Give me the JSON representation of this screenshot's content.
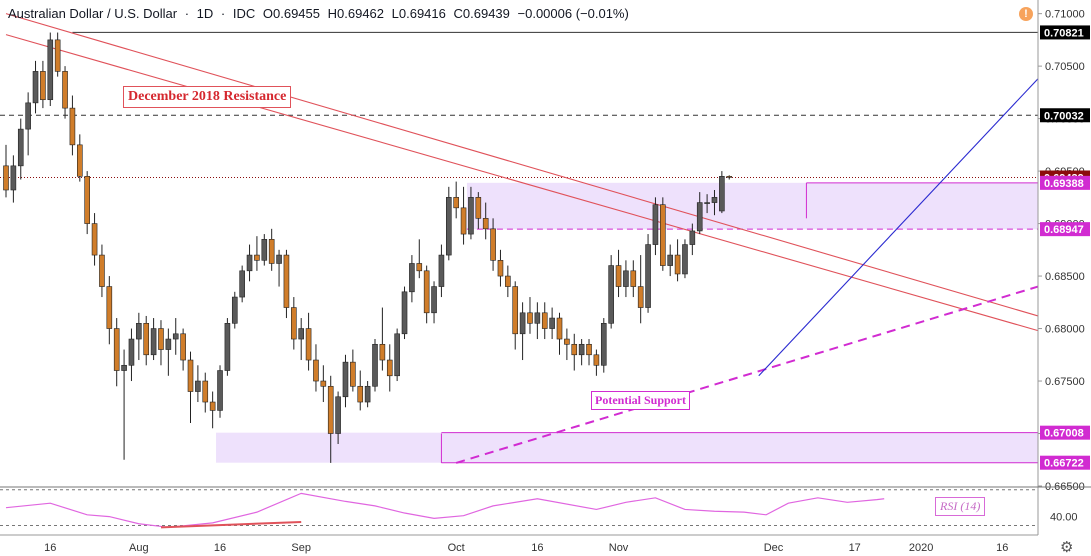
{
  "header": {
    "symbol": "Australian Dollar / U.S. Dollar",
    "timeframe": "1D",
    "source": "IDC",
    "open": "O0.69455",
    "high": "H0.69462",
    "low": "L0.69416",
    "close": "C0.69439",
    "change": "−0.00006 (−0.01%)"
  },
  "annotations": {
    "resistance": "December 2018 Resistance",
    "support": "Potential Support",
    "rsi": "RSI (14)"
  },
  "colors": {
    "up_candle": "#5a5a5a",
    "down_candle": "#d07d2a",
    "resistance": "#e0525a",
    "support": "#d12bd1",
    "trend": "#2a2ad0",
    "zone": "#ebdcfb",
    "current_price": "#8b0c0c"
  },
  "chart_data": [
    {
      "type": "candlestick",
      "title": "Australian Dollar / U.S. Dollar · 1D · IDC",
      "ylim": [
        0.665,
        0.7113
      ],
      "y_ticks": [
        "0.71000",
        "0.70500",
        "0.70000",
        "0.69500",
        "0.69000",
        "0.68500",
        "0.68000",
        "0.67500",
        "0.67000",
        "0.66500"
      ],
      "x_ticks": [
        "16",
        "Aug",
        "16",
        "Sep",
        "Oct",
        "16",
        "Nov",
        "Dec",
        "17",
        "2020",
        "16"
      ],
      "price_labels": [
        {
          "value": 0.70821,
          "text": "0.70821",
          "style": "black"
        },
        {
          "value": 0.70032,
          "text": "0.70032",
          "style": "black"
        },
        {
          "value": 0.69439,
          "text": "0.69439",
          "style": "current"
        },
        {
          "value": 0.69388,
          "text": "0.69388",
          "style": "support"
        },
        {
          "value": 0.68947,
          "text": "0.68947",
          "style": "support"
        },
        {
          "value": 0.67008,
          "text": "0.67008",
          "style": "support"
        },
        {
          "value": 0.66722,
          "text": "0.66722",
          "style": "support"
        }
      ],
      "zones": [
        {
          "from": 0.68947,
          "to": 0.69388,
          "start": 63
        },
        {
          "from": 0.66722,
          "to": 0.67008,
          "start": 29
        }
      ],
      "candles": [
        [
          0.6955,
          0.6975,
          0.6925,
          0.6932
        ],
        [
          0.6932,
          0.6965,
          0.692,
          0.6955
        ],
        [
          0.6955,
          0.7,
          0.6942,
          0.699
        ],
        [
          0.699,
          0.7025,
          0.6965,
          0.7015
        ],
        [
          0.7015,
          0.7055,
          0.7005,
          0.7045
        ],
        [
          0.7045,
          0.7055,
          0.701,
          0.7018
        ],
        [
          0.7018,
          0.7082,
          0.7012,
          0.7075
        ],
        [
          0.7075,
          0.7082,
          0.704,
          0.7045
        ],
        [
          0.7045,
          0.705,
          0.7,
          0.701
        ],
        [
          0.701,
          0.7022,
          0.6965,
          0.6975
        ],
        [
          0.6975,
          0.6985,
          0.694,
          0.6945
        ],
        [
          0.6945,
          0.695,
          0.689,
          0.69
        ],
        [
          0.69,
          0.691,
          0.686,
          0.687
        ],
        [
          0.687,
          0.688,
          0.683,
          0.684
        ],
        [
          0.684,
          0.685,
          0.6785,
          0.68
        ],
        [
          0.68,
          0.681,
          0.6745,
          0.676
        ],
        [
          0.676,
          0.678,
          0.6675,
          0.6765
        ],
        [
          0.6765,
          0.68,
          0.675,
          0.679
        ],
        [
          0.679,
          0.6815,
          0.677,
          0.6805
        ],
        [
          0.6805,
          0.6812,
          0.6765,
          0.6775
        ],
        [
          0.6775,
          0.681,
          0.677,
          0.68
        ],
        [
          0.68,
          0.6808,
          0.6765,
          0.678
        ],
        [
          0.678,
          0.68,
          0.6755,
          0.679
        ],
        [
          0.679,
          0.681,
          0.6775,
          0.6795
        ],
        [
          0.6795,
          0.68,
          0.676,
          0.677
        ],
        [
          0.677,
          0.6778,
          0.671,
          0.674
        ],
        [
          0.674,
          0.6765,
          0.673,
          0.675
        ],
        [
          0.675,
          0.6758,
          0.672,
          0.673
        ],
        [
          0.673,
          0.674,
          0.6705,
          0.6722
        ],
        [
          0.6722,
          0.6765,
          0.6715,
          0.676
        ],
        [
          0.676,
          0.681,
          0.6755,
          0.6805
        ],
        [
          0.6805,
          0.6835,
          0.68,
          0.683
        ],
        [
          0.683,
          0.686,
          0.6825,
          0.6855
        ],
        [
          0.6855,
          0.688,
          0.6845,
          0.687
        ],
        [
          0.687,
          0.6888,
          0.6855,
          0.6865
        ],
        [
          0.6865,
          0.689,
          0.686,
          0.6885
        ],
        [
          0.6885,
          0.6895,
          0.6855,
          0.6862
        ],
        [
          0.6862,
          0.6875,
          0.684,
          0.687
        ],
        [
          0.687,
          0.6875,
          0.681,
          0.682
        ],
        [
          0.682,
          0.683,
          0.678,
          0.679
        ],
        [
          0.679,
          0.681,
          0.677,
          0.68
        ],
        [
          0.68,
          0.6815,
          0.676,
          0.677
        ],
        [
          0.677,
          0.6785,
          0.674,
          0.675
        ],
        [
          0.675,
          0.6765,
          0.673,
          0.6745
        ],
        [
          0.6745,
          0.6755,
          0.6672,
          0.67
        ],
        [
          0.67,
          0.674,
          0.669,
          0.6735
        ],
        [
          0.6735,
          0.6775,
          0.6725,
          0.6768
        ],
        [
          0.6768,
          0.678,
          0.674,
          0.6745
        ],
        [
          0.6745,
          0.676,
          0.6722,
          0.673
        ],
        [
          0.673,
          0.675,
          0.6725,
          0.6745
        ],
        [
          0.6745,
          0.679,
          0.674,
          0.6785
        ],
        [
          0.6785,
          0.682,
          0.676,
          0.677
        ],
        [
          0.677,
          0.6785,
          0.674,
          0.6755
        ],
        [
          0.6755,
          0.68,
          0.675,
          0.6795
        ],
        [
          0.6795,
          0.684,
          0.679,
          0.6835
        ],
        [
          0.6835,
          0.687,
          0.6825,
          0.6862
        ],
        [
          0.6862,
          0.6885,
          0.6848,
          0.6855
        ],
        [
          0.6855,
          0.686,
          0.6805,
          0.6815
        ],
        [
          0.6815,
          0.6845,
          0.6805,
          0.684
        ],
        [
          0.684,
          0.688,
          0.683,
          0.687
        ],
        [
          0.687,
          0.6935,
          0.6865,
          0.6925
        ],
        [
          0.6925,
          0.694,
          0.6905,
          0.6915
        ],
        [
          0.6915,
          0.6935,
          0.688,
          0.689
        ],
        [
          0.689,
          0.6935,
          0.6885,
          0.6925
        ],
        [
          0.6925,
          0.693,
          0.6895,
          0.6905
        ],
        [
          0.6905,
          0.692,
          0.6885,
          0.6895
        ],
        [
          0.6895,
          0.6905,
          0.6855,
          0.6865
        ],
        [
          0.6865,
          0.6875,
          0.684,
          0.685
        ],
        [
          0.685,
          0.686,
          0.683,
          0.684
        ],
        [
          0.684,
          0.6845,
          0.678,
          0.6795
        ],
        [
          0.6795,
          0.6825,
          0.677,
          0.6815
        ],
        [
          0.6815,
          0.683,
          0.6795,
          0.6805
        ],
        [
          0.6805,
          0.6825,
          0.679,
          0.6815
        ],
        [
          0.6815,
          0.6825,
          0.679,
          0.68
        ],
        [
          0.68,
          0.682,
          0.679,
          0.681
        ],
        [
          0.681,
          0.6815,
          0.6775,
          0.679
        ],
        [
          0.679,
          0.68,
          0.677,
          0.6785
        ],
        [
          0.6785,
          0.6795,
          0.676,
          0.6775
        ],
        [
          0.6775,
          0.679,
          0.6765,
          0.6785
        ],
        [
          0.6785,
          0.679,
          0.6765,
          0.6775
        ],
        [
          0.6775,
          0.678,
          0.6755,
          0.6765
        ],
        [
          0.6765,
          0.681,
          0.6758,
          0.6805
        ],
        [
          0.6805,
          0.687,
          0.68,
          0.686
        ],
        [
          0.686,
          0.6875,
          0.683,
          0.684
        ],
        [
          0.684,
          0.6865,
          0.683,
          0.6855
        ],
        [
          0.6855,
          0.6865,
          0.683,
          0.684
        ],
        [
          0.684,
          0.687,
          0.6805,
          0.682
        ],
        [
          0.682,
          0.689,
          0.6815,
          0.688
        ],
        [
          0.688,
          0.6925,
          0.687,
          0.6918
        ],
        [
          0.6918,
          0.6925,
          0.6855,
          0.686
        ],
        [
          0.686,
          0.688,
          0.685,
          0.687
        ],
        [
          0.687,
          0.6885,
          0.6845,
          0.6852
        ],
        [
          0.6852,
          0.6885,
          0.6848,
          0.688
        ],
        [
          0.688,
          0.69,
          0.687,
          0.6893
        ],
        [
          0.6893,
          0.693,
          0.689,
          0.692
        ],
        [
          0.692,
          0.6928,
          0.691,
          0.692
        ],
        [
          0.692,
          0.6932,
          0.6908,
          0.6925
        ],
        [
          0.6912,
          0.695,
          0.691,
          0.6945
        ],
        [
          0.6945,
          0.6946,
          0.6942,
          0.6944
        ]
      ],
      "resistance_lines": [
        {
          "from": [
            0,
            0.71
          ],
          "to": [
            119,
            0.6812
          ]
        },
        {
          "from": [
            0,
            0.708
          ],
          "to": [
            119,
            0.6798
          ]
        }
      ],
      "support_line": {
        "from": [
          61,
          0.6672
        ],
        "to": [
          119,
          0.684
        ]
      },
      "trend_line": {
        "from": [
          102,
          0.6755
        ],
        "to": [
          119,
          0.7038
        ]
      },
      "resistance_dashed": 0.70032,
      "high_line": 0.70821
    },
    {
      "type": "line",
      "title": "RSI (14)",
      "ylim": [
        25,
        72
      ],
      "y_ticks": [
        "40.00"
      ],
      "levels": [
        70,
        30
      ],
      "x": [
        0,
        6,
        11,
        14,
        18,
        22,
        28,
        34,
        40,
        46,
        50,
        54,
        58,
        62,
        66,
        72,
        80,
        84,
        88,
        92,
        96,
        100,
        103,
        106,
        110,
        114,
        118,
        119
      ],
      "y": [
        50,
        55,
        42,
        40,
        32,
        28,
        33,
        45,
        66,
        57,
        52,
        44,
        38,
        41,
        52,
        60,
        48,
        56,
        61,
        48,
        46,
        45,
        42,
        55,
        61,
        56,
        59,
        60
      ],
      "divergence_line": {
        "from": [
          21,
          28
        ],
        "to": [
          40,
          34
        ]
      }
    }
  ]
}
